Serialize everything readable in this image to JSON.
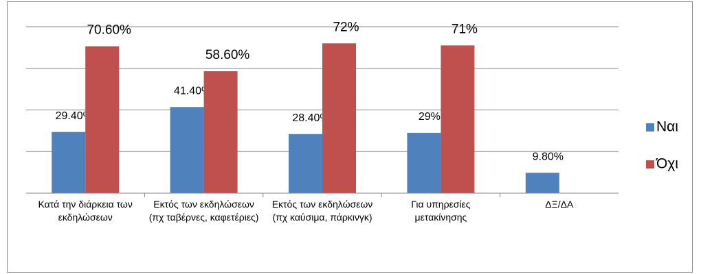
{
  "chart_data": {
    "type": "bar",
    "categories": [
      "Κατά την διάρκεια των εκδηλώσεων",
      "Εκτός των εκδηλώσεων (πχ ταβέρνες, καφετέριες)",
      "Εκτός των εκδηλώσεων (πχ καύσιμα, πάρκινγκ)",
      "Για υπηρεσίες μετακίνησης",
      "ΔΞ/ΔΑ"
    ],
    "series": [
      {
        "name": "Ναι",
        "color": "#4f81bd",
        "values": [
          29.4,
          41.4,
          28.4,
          29,
          9.8
        ],
        "value_labels": [
          "29.40%",
          "41.40%",
          "28.40%",
          "29%",
          "9.80%"
        ]
      },
      {
        "name": "Όχι",
        "color": "#c0504d",
        "values": [
          70.6,
          58.6,
          72,
          71,
          null
        ],
        "value_labels": [
          "70.60%",
          "58.60%",
          "72%",
          "71%",
          null
        ]
      }
    ],
    "ylim": [
      0,
      80
    ],
    "yticks": [
      0,
      20,
      40,
      60,
      80
    ],
    "grid": true,
    "legend": "right"
  }
}
